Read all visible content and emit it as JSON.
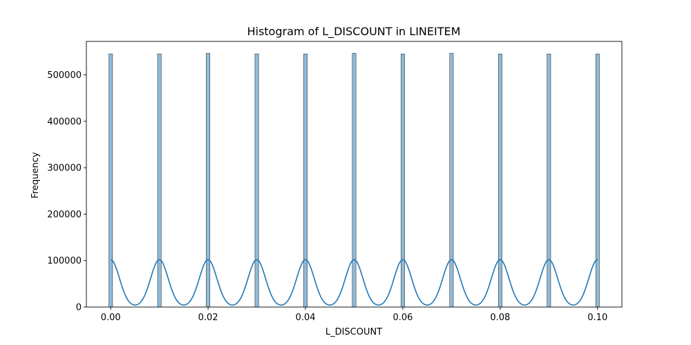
{
  "chart_data": {
    "type": "bar",
    "title": "Histogram of L_DISCOUNT in LINEITEM",
    "xlabel": "L_DISCOUNT",
    "ylabel": "Frequency",
    "xlim": [
      -0.005,
      0.105
    ],
    "ylim": [
      0,
      572000
    ],
    "xticks": [
      "0.00",
      "0.02",
      "0.04",
      "0.06",
      "0.08",
      "0.10"
    ],
    "xtick_values": [
      0.0,
      0.02,
      0.04,
      0.06,
      0.08,
      0.1
    ],
    "yticks": [
      "0",
      "100000",
      "200000",
      "300000",
      "400000",
      "500000"
    ],
    "ytick_values": [
      0,
      100000,
      200000,
      300000,
      400000,
      500000
    ],
    "grid": false,
    "series": [
      {
        "kind": "histogram",
        "x": [
          0.0,
          0.01,
          0.02,
          0.03,
          0.04,
          0.05,
          0.06,
          0.07,
          0.08,
          0.09,
          0.1
        ],
        "values": [
          545000,
          545000,
          546500,
          545000,
          545000,
          546500,
          545000,
          546500,
          545000,
          545000,
          545000
        ],
        "bin_width": 0.00075,
        "color": "#1f77b4",
        "fill_opacity": 0.5
      },
      {
        "kind": "kde",
        "peak": 102000,
        "centers": [
          0.0,
          0.01,
          0.02,
          0.03,
          0.04,
          0.05,
          0.06,
          0.07,
          0.08,
          0.09,
          0.1
        ],
        "color": "#1f77b4"
      }
    ]
  }
}
